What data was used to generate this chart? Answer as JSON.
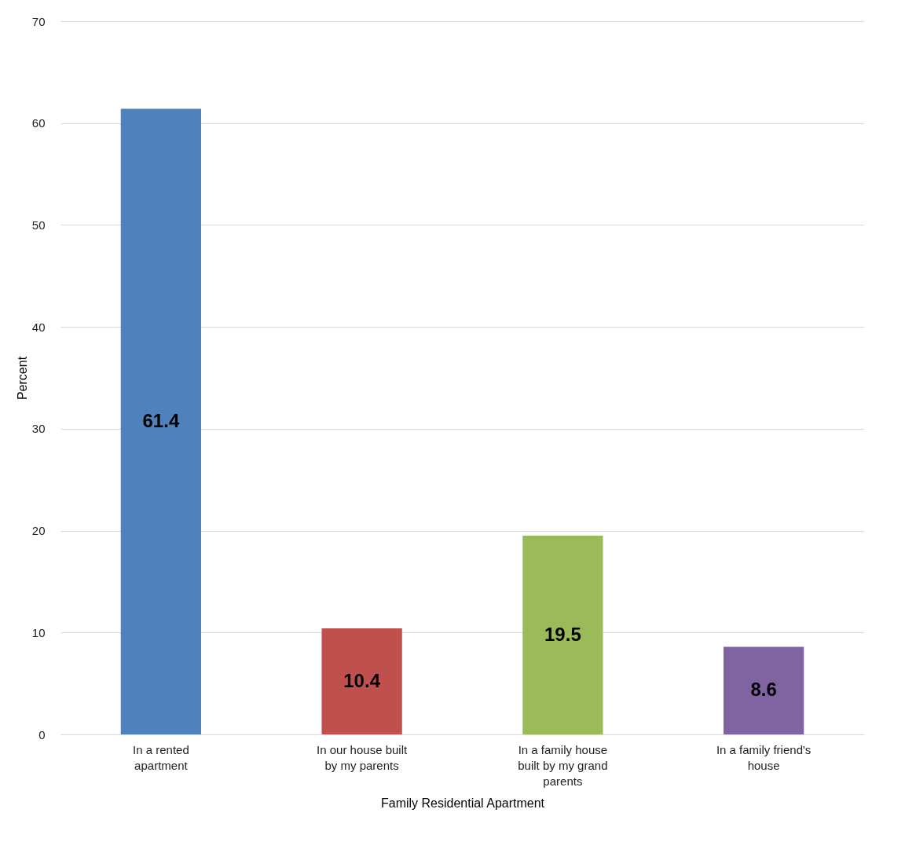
{
  "chart_data": {
    "type": "bar",
    "xlabel": "Family Residential Apartment",
    "ylabel": "Percent",
    "categories": [
      "In a rented apartment",
      "In our house built by my parents",
      "In a family house built by my grand parents",
      "In a family friend's house"
    ],
    "values": [
      61.4,
      10.4,
      19.5,
      8.6
    ],
    "colors": [
      "#4f81bd",
      "#c0504d",
      "#9bbb59",
      "#8064a2"
    ],
    "ylim": [
      0,
      70
    ],
    "yticks": [
      0,
      10,
      20,
      30,
      40,
      50,
      60,
      70
    ],
    "grid": "y",
    "data_labels": true
  }
}
